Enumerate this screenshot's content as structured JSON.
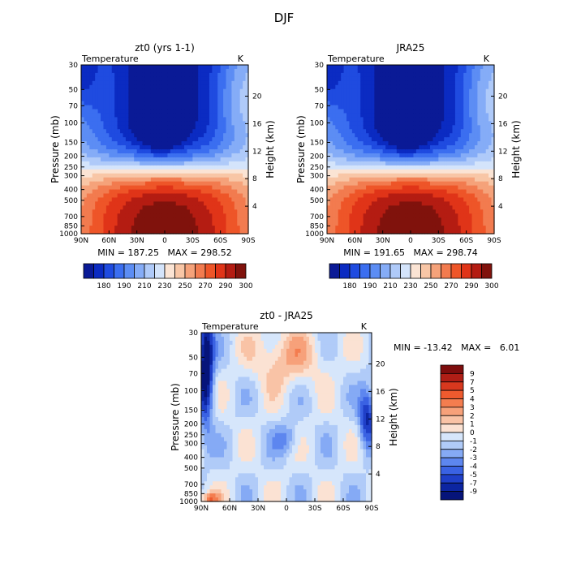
{
  "figure": {
    "title": "DJF"
  },
  "chart_data": [
    {
      "type": "heatmap",
      "title": "zt0 (yrs 1-1)",
      "left_label": "Temperature",
      "right_label": "K",
      "xlabel": "",
      "ylabel": "Pressure (mb)",
      "y2label": "Height (km)",
      "x_ticks": [
        "90N",
        "60N",
        "30N",
        "0",
        "30S",
        "60S",
        "90S"
      ],
      "y_ticks": [
        "30",
        "50",
        "70",
        "100",
        "150",
        "200",
        "250",
        "300",
        "400",
        "500",
        "700",
        "850",
        "1000"
      ],
      "y2_ticks": [
        "20",
        "16",
        "12",
        "8",
        "4"
      ],
      "ylim": [
        30,
        1000
      ],
      "y_scale": "log",
      "stats": "MIN = 187.25   MAX = 298.52",
      "colorbar": {
        "labels": [
          "180",
          "190",
          "210",
          "230",
          "250",
          "270",
          "290",
          "300"
        ],
        "colors": [
          "#0a1a96",
          "#0b2bc2",
          "#1f4be0",
          "#3b6ef0",
          "#5c8df4",
          "#85acf7",
          "#afcaf9",
          "#d4e4fb",
          "#fbe4d4",
          "#f8c6a6",
          "#f5a27a",
          "#f27b4f",
          "#ee5528",
          "#e03418",
          "#b41c12",
          "#80120c"
        ]
      },
      "min": 187.25,
      "max": 298.52
    },
    {
      "type": "heatmap",
      "title": "JRA25",
      "left_label": "Temperature",
      "right_label": "K",
      "xlabel": "",
      "ylabel": "Pressure (mb)",
      "y2label": "Height (km)",
      "x_ticks": [
        "90N",
        "60N",
        "30N",
        "0",
        "30S",
        "60S",
        "90S"
      ],
      "y_ticks": [
        "30",
        "50",
        "70",
        "100",
        "150",
        "200",
        "250",
        "300",
        "400",
        "500",
        "700",
        "850",
        "1000"
      ],
      "y2_ticks": [
        "20",
        "16",
        "12",
        "8",
        "4"
      ],
      "ylim": [
        30,
        1000
      ],
      "y_scale": "log",
      "stats": "MIN = 191.65   MAX = 298.74",
      "colorbar": {
        "labels": [
          "180",
          "190",
          "210",
          "230",
          "250",
          "270",
          "290",
          "300"
        ],
        "colors": [
          "#0a1a96",
          "#0b2bc2",
          "#1f4be0",
          "#3b6ef0",
          "#5c8df4",
          "#85acf7",
          "#afcaf9",
          "#d4e4fb",
          "#fbe4d4",
          "#f8c6a6",
          "#f5a27a",
          "#f27b4f",
          "#ee5528",
          "#e03418",
          "#b41c12",
          "#80120c"
        ]
      },
      "min": 191.65,
      "max": 298.74
    },
    {
      "type": "heatmap",
      "title": "zt0 - JRA25",
      "left_label": "Temperature",
      "right_label": "K",
      "xlabel": "",
      "ylabel": "Pressure (mb)",
      "y2label": "Height (km)",
      "x_ticks": [
        "90N",
        "60N",
        "30N",
        "0",
        "30S",
        "60S",
        "90S"
      ],
      "y_ticks": [
        "30",
        "50",
        "70",
        "100",
        "150",
        "200",
        "250",
        "300",
        "400",
        "500",
        "700",
        "850",
        "1000"
      ],
      "y2_ticks": [
        "20",
        "16",
        "12",
        "8",
        "4"
      ],
      "ylim": [
        30,
        1000
      ],
      "y_scale": "log",
      "stats": "MIN = -13.42   MAX =   6.01",
      "colorbar": {
        "labels": [
          "9",
          "7",
          "5",
          "4",
          "3",
          "2",
          "1",
          "0",
          "-1",
          "-2",
          "-3",
          "-4",
          "-5",
          "-7",
          "-9"
        ],
        "colors": [
          "#7e0d0d",
          "#b01e16",
          "#d8381e",
          "#ee5a2e",
          "#f47d4f",
          "#f7a17a",
          "#f9c3a6",
          "#fbe2d3",
          "#d6e6fb",
          "#b0cbf8",
          "#85aaf5",
          "#5d86ef",
          "#3a62e3",
          "#1f3fc8",
          "#0c25a1",
          "#06147a"
        ]
      },
      "min": -13.42,
      "max": 6.01
    }
  ]
}
